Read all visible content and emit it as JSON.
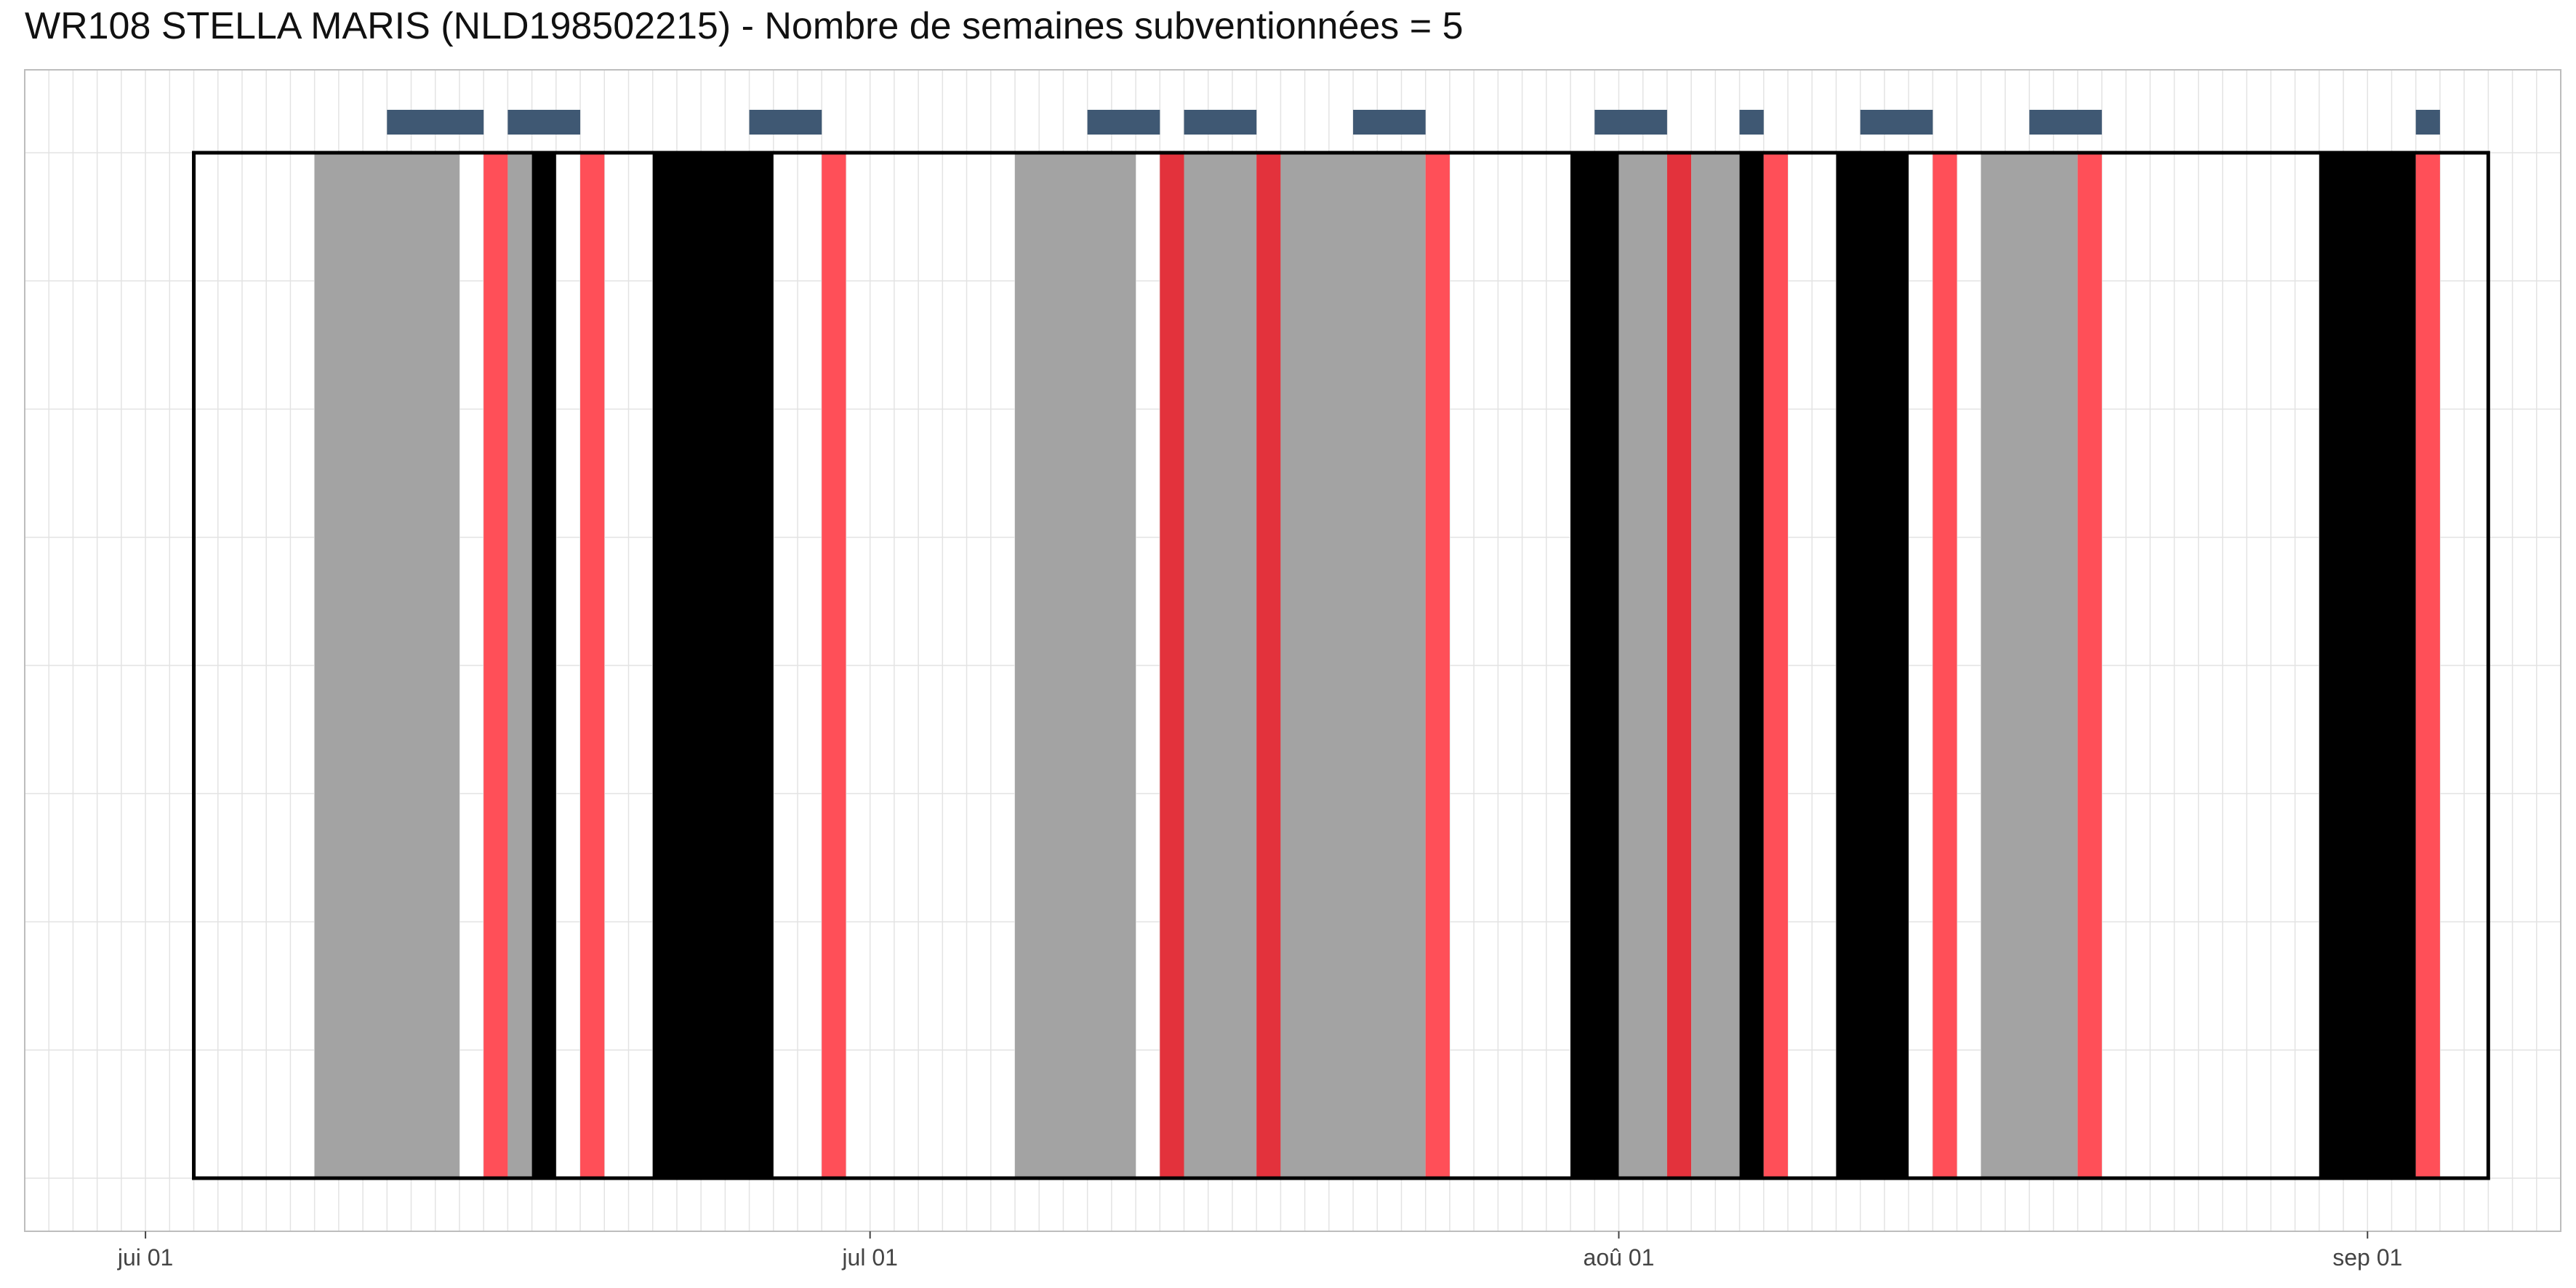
{
  "chart_data": {
    "type": "timeline",
    "title": "WR108 STELLA MARIS (NLD198502215) - Nombre de semaines subventionnées = 5",
    "x_axis": {
      "type": "date",
      "range": [
        "2024-05-27",
        "2024-09-09"
      ],
      "tick_labels": [
        {
          "date": "2024-06-01",
          "label": "jui 01"
        },
        {
          "date": "2024-07-01",
          "label": "jul 01"
        },
        {
          "date": "2024-08-01",
          "label": "aoû 01"
        },
        {
          "date": "2024-09-01",
          "label": "sep 01"
        }
      ],
      "minor_grid": "daily"
    },
    "y_axis": {
      "tick_labels": []
    },
    "grid": true,
    "outline_period": {
      "start": "2024-06-03",
      "end": "2024-09-06"
    },
    "colors": {
      "gray": "#a3a3a3",
      "black": "#000000",
      "red": "#ff4f58",
      "red_dark": "#e3323c",
      "top_bar": "#3f5873",
      "grid": "#e3e3e3",
      "panel_border": "#bdbdbd"
    },
    "segments": [
      {
        "start": "2024-06-08",
        "end": "2024-06-14",
        "color": "gray"
      },
      {
        "start": "2024-06-15",
        "end": "2024-06-16",
        "color": "red"
      },
      {
        "start": "2024-06-16",
        "end": "2024-06-17",
        "color": "gray"
      },
      {
        "start": "2024-06-17",
        "end": "2024-06-18",
        "color": "black"
      },
      {
        "start": "2024-06-19",
        "end": "2024-06-20",
        "color": "red"
      },
      {
        "start": "2024-06-22",
        "end": "2024-06-27",
        "color": "black"
      },
      {
        "start": "2024-06-29",
        "end": "2024-06-30",
        "color": "red"
      },
      {
        "start": "2024-07-07",
        "end": "2024-07-12",
        "color": "gray"
      },
      {
        "start": "2024-07-13",
        "end": "2024-07-14",
        "color": "red_dark"
      },
      {
        "start": "2024-07-14",
        "end": "2024-07-17",
        "color": "gray"
      },
      {
        "start": "2024-07-17",
        "end": "2024-07-18",
        "color": "red_dark"
      },
      {
        "start": "2024-07-18",
        "end": "2024-07-24",
        "color": "gray"
      },
      {
        "start": "2024-07-24",
        "end": "2024-07-25",
        "color": "red"
      },
      {
        "start": "2024-07-30",
        "end": "2024-08-01",
        "color": "black"
      },
      {
        "start": "2024-08-01",
        "end": "2024-08-03",
        "color": "gray"
      },
      {
        "start": "2024-08-03",
        "end": "2024-08-04",
        "color": "red_dark"
      },
      {
        "start": "2024-08-04",
        "end": "2024-08-06",
        "color": "gray"
      },
      {
        "start": "2024-08-06",
        "end": "2024-08-07",
        "color": "black"
      },
      {
        "start": "2024-08-07",
        "end": "2024-08-08",
        "color": "red"
      },
      {
        "start": "2024-08-10",
        "end": "2024-08-13",
        "color": "black"
      },
      {
        "start": "2024-08-14",
        "end": "2024-08-15",
        "color": "red"
      },
      {
        "start": "2024-08-16",
        "end": "2024-08-20",
        "color": "gray"
      },
      {
        "start": "2024-08-20",
        "end": "2024-08-21",
        "color": "red"
      },
      {
        "start": "2024-08-30",
        "end": "2024-09-03",
        "color": "black"
      },
      {
        "start": "2024-09-03",
        "end": "2024-09-04",
        "color": "red"
      }
    ],
    "top_bars": [
      {
        "start": "2024-06-11",
        "end": "2024-06-15"
      },
      {
        "start": "2024-06-16",
        "end": "2024-06-19"
      },
      {
        "start": "2024-06-26",
        "end": "2024-06-29"
      },
      {
        "start": "2024-07-10",
        "end": "2024-07-13"
      },
      {
        "start": "2024-07-14",
        "end": "2024-07-17"
      },
      {
        "start": "2024-07-21",
        "end": "2024-07-24"
      },
      {
        "start": "2024-07-31",
        "end": "2024-08-03"
      },
      {
        "start": "2024-08-06",
        "end": "2024-08-07"
      },
      {
        "start": "2024-08-11",
        "end": "2024-08-14"
      },
      {
        "start": "2024-08-18",
        "end": "2024-08-21"
      },
      {
        "start": "2024-09-03",
        "end": "2024-09-04"
      }
    ]
  }
}
